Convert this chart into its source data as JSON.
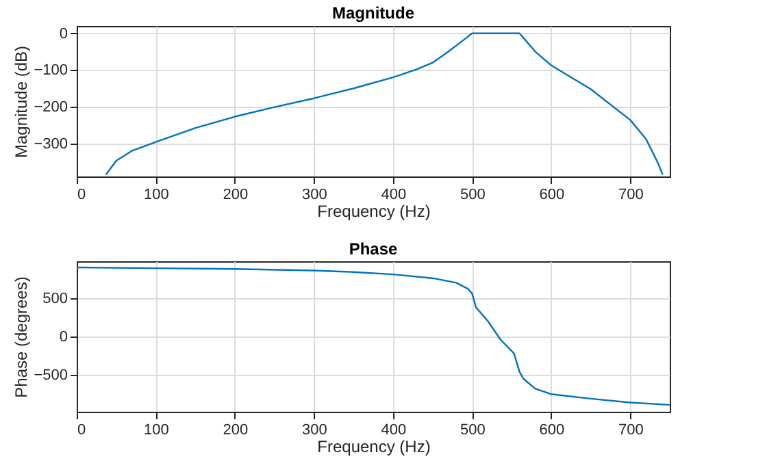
{
  "chart_data": [
    {
      "type": "line",
      "title": "Magnitude",
      "xlabel": "Frequency (Hz)",
      "ylabel": "Magnitude (dB)",
      "xlim": [
        0,
        750
      ],
      "ylim": [
        -390,
        20
      ],
      "xticks": [
        0,
        100,
        200,
        300,
        400,
        500,
        600,
        700
      ],
      "yticks": [
        -300,
        -200,
        -100,
        0
      ],
      "grid": true,
      "x": [
        37,
        50,
        70,
        100,
        150,
        200,
        250,
        300,
        350,
        400,
        430,
        450,
        470,
        490,
        500,
        560,
        570,
        580,
        600,
        650,
        700,
        720,
        735,
        741
      ],
      "series": [
        {
          "color": "#0072bd",
          "values": [
            -385,
            -347,
            -320,
            -296,
            -258,
            -227,
            -201,
            -177,
            -150,
            -120,
            -98,
            -80,
            -50,
            -17,
            0,
            0,
            -25,
            -50,
            -87,
            -152,
            -236,
            -288,
            -353,
            -385
          ]
        }
      ]
    },
    {
      "type": "line",
      "title": "Phase",
      "xlabel": "Frequency (Hz)",
      "ylabel": "Phase (degrees)",
      "xlim": [
        0,
        750
      ],
      "ylim": [
        -980,
        980
      ],
      "xticks": [
        0,
        100,
        200,
        300,
        400,
        500,
        600,
        700
      ],
      "yticks": [
        -500,
        0,
        500
      ],
      "grid": true,
      "x": [
        0,
        100,
        200,
        300,
        350,
        400,
        450,
        480,
        495,
        500,
        505,
        520,
        536,
        553,
        560,
        565,
        580,
        600,
        650,
        700,
        750
      ],
      "series": [
        {
          "color": "#0072bd",
          "values": [
            900,
            890,
            880,
            860,
            840,
            810,
            760,
            700,
            620,
            560,
            380,
            200,
            -40,
            -220,
            -460,
            -550,
            -680,
            -750,
            -810,
            -860,
            -890
          ]
        }
      ]
    }
  ]
}
